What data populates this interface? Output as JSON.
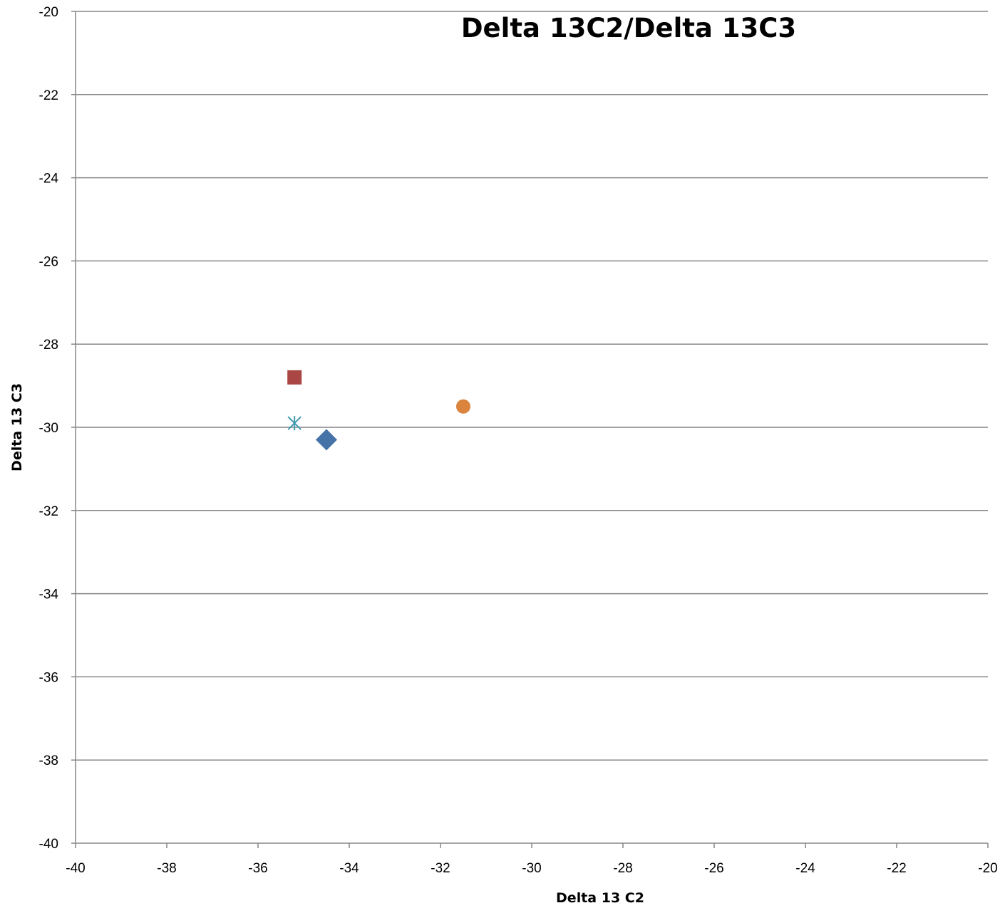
{
  "chart_data": {
    "type": "scatter",
    "title": "Delta 13C2/Delta 13C3",
    "xlabel": "Delta 13 C2",
    "ylabel": "Delta 13 C3",
    "xlim": [
      -40,
      -20
    ],
    "ylim": [
      -40,
      -20
    ],
    "x_ticks": [
      -40,
      -38,
      -36,
      -34,
      -32,
      -30,
      -28,
      -26,
      -24,
      -22,
      -20
    ],
    "y_ticks": [
      -40,
      -38,
      -36,
      -34,
      -32,
      -30,
      -28,
      -26,
      -24,
      -22,
      -20
    ],
    "grid": "horizontal",
    "legend": "none",
    "series": [
      {
        "marker": "diamond",
        "color": "#4572A7",
        "points": [
          {
            "x": -34.5,
            "y": -30.3
          }
        ]
      },
      {
        "marker": "square",
        "color": "#AA4643",
        "points": [
          {
            "x": -35.2,
            "y": -28.8
          }
        ]
      },
      {
        "marker": "star",
        "color": "#4198AF",
        "points": [
          {
            "x": -35.2,
            "y": -29.9
          }
        ]
      },
      {
        "marker": "circle",
        "color": "#DB843D",
        "points": [
          {
            "x": -31.5,
            "y": -29.5
          }
        ]
      }
    ]
  }
}
